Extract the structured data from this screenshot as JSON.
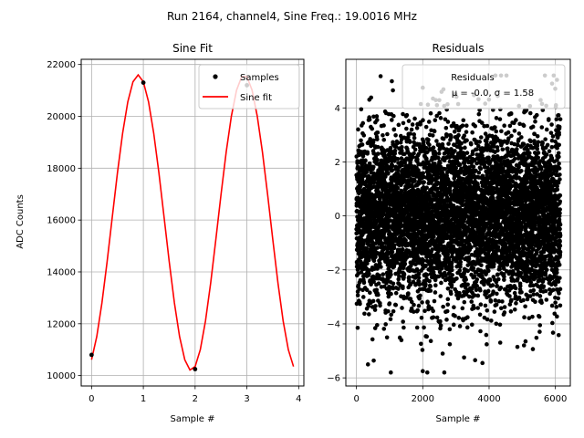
{
  "suptitle": "Run 2164, channel4, Sine Freq.: 19.0016 MHz",
  "chart_data": [
    {
      "type": "line",
      "title": "Sine Fit",
      "xlabel": "Sample #",
      "ylabel": "ADC Counts",
      "xlim": [
        -0.2,
        4.1
      ],
      "ylim": [
        9600,
        22200
      ],
      "xticks": [
        0,
        1,
        2,
        3,
        4
      ],
      "yticks": [
        10000,
        12000,
        14000,
        16000,
        18000,
        20000,
        22000
      ],
      "grid": true,
      "legend": {
        "position": "top-right",
        "entries": [
          "Samples",
          "Sine fit"
        ]
      },
      "series": [
        {
          "name": "Samples",
          "kind": "scatter",
          "color": "#000000",
          "x": [
            0,
            1,
            2,
            3
          ],
          "y": [
            10800,
            21300,
            10250,
            21200
          ]
        },
        {
          "name": "Sine fit",
          "kind": "line",
          "color": "#ff0000",
          "fit": {
            "offset": 15900,
            "amplitude": 5700,
            "period": 2.05,
            "phase_x": 0.9,
            "x_start": 0,
            "x_end": 3.9,
            "step": 0.1
          }
        }
      ]
    },
    {
      "type": "scatter",
      "title": "Residuals",
      "xlabel": "Sample #",
      "ylabel": "",
      "xlim": [
        -320,
        6450
      ],
      "ylim": [
        -6.3,
        5.8
      ],
      "xticks": [
        0,
        2000,
        4000,
        6000
      ],
      "yticks": [
        -6,
        -4,
        -2,
        0,
        2,
        4
      ],
      "grid": true,
      "legend": {
        "position": "top-right",
        "entries": [
          "Residuals"
        ],
        "stats_text": "μ = -0.0, σ = 1.58"
      },
      "series": [
        {
          "name": "Residuals",
          "color": "#000000",
          "count": 6200,
          "mean": 0.0,
          "std": 1.58,
          "x_range": [
            0,
            6150
          ],
          "y_range": [
            -5.8,
            5.2
          ],
          "notable_points": [
            {
              "x": 2000,
              "y": -5.75
            },
            {
              "x": 2650,
              "y": -5.8
            },
            {
              "x": 3800,
              "y": -5.45
            },
            {
              "x": 2600,
              "y": -5.1
            },
            {
              "x": 5950,
              "y": 5.2
            },
            {
              "x": 2000,
              "y": 4.75
            },
            {
              "x": 1100,
              "y": 4.65
            },
            {
              "x": 5900,
              "y": 4.9
            }
          ]
        }
      ]
    }
  ]
}
